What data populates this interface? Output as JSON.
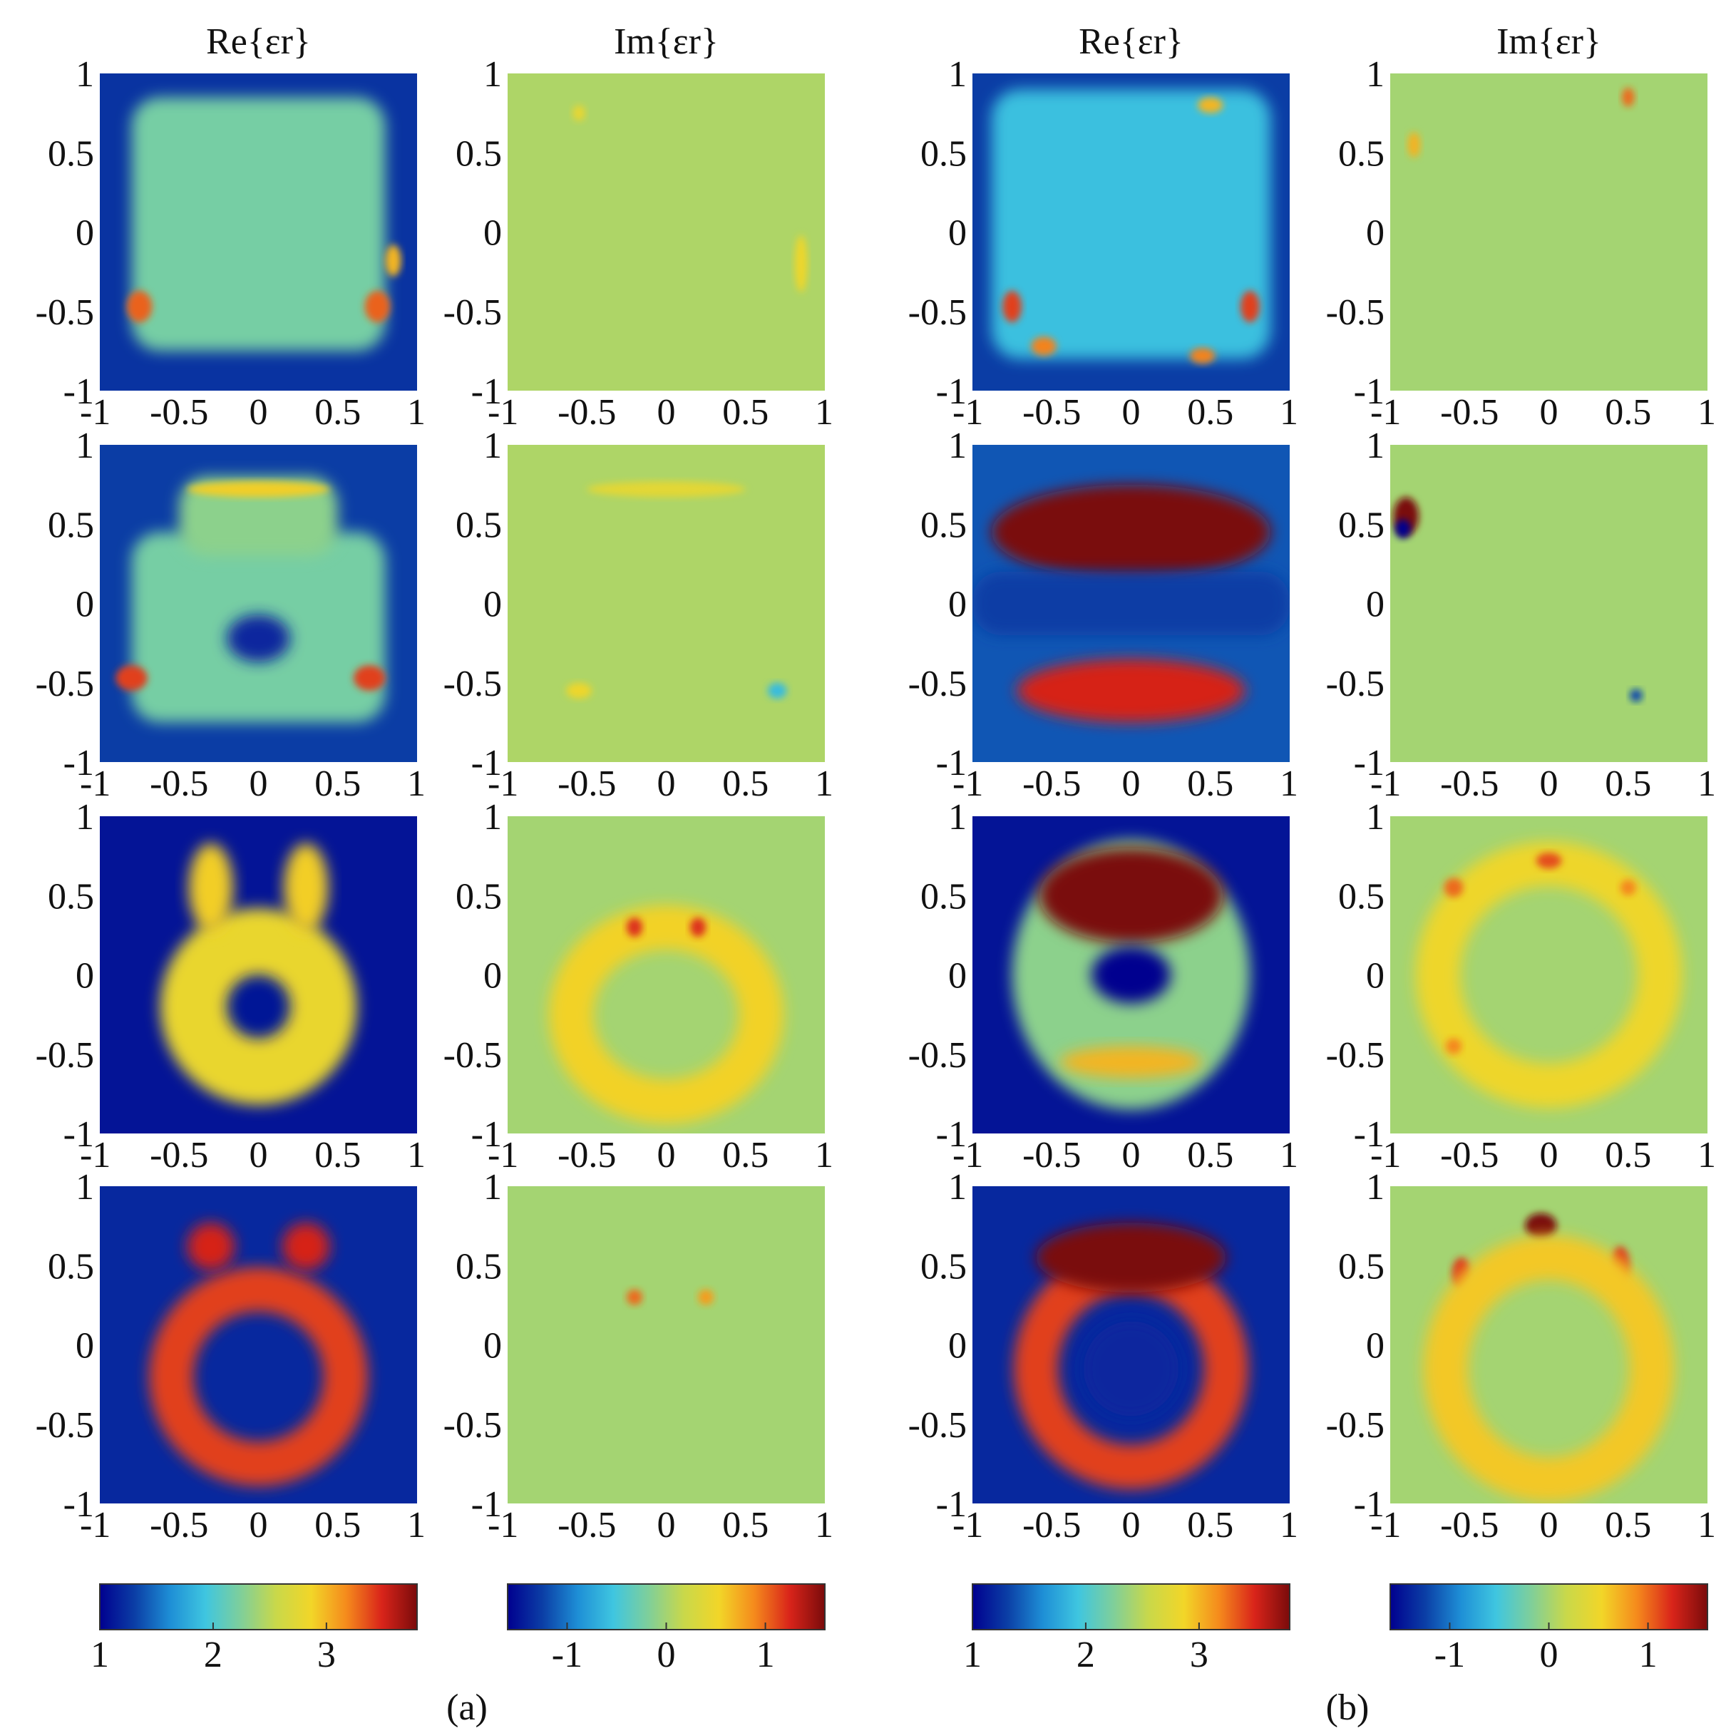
{
  "chart_data": {
    "type": "heatmap",
    "column_headers": [
      "Re{εr}",
      "Im{εr}",
      "Re{εr}",
      "Im{εr}"
    ],
    "group_labels": [
      "(a)",
      "(b)"
    ],
    "axes": {
      "xlim": [
        -1,
        1
      ],
      "ylim": [
        -1,
        1
      ],
      "x_ticks": [
        "-1",
        "-0.5",
        "0",
        "0.5",
        "1"
      ],
      "y_ticks": [
        "1",
        "0.5",
        "0",
        "-0.5",
        "-1"
      ]
    },
    "colormap": [
      "#00008f",
      "#0b3fa6",
      "#1e8fd6",
      "#3fc6e0",
      "#7fcf9a",
      "#c9d84a",
      "#f2d628",
      "#f58a1c",
      "#d9241a",
      "#7a0b0b"
    ],
    "colorbars": [
      {
        "column": 1,
        "range": [
          1,
          3.8
        ],
        "tick_values": [
          1,
          2,
          3
        ],
        "tick_labels": [
          "1",
          "2",
          "3"
        ]
      },
      {
        "column": 2,
        "range": [
          -1.6,
          1.6
        ],
        "tick_values": [
          -1,
          0,
          1
        ],
        "tick_labels": [
          "-1",
          "0",
          "1"
        ]
      },
      {
        "column": 3,
        "range": [
          1,
          3.8
        ],
        "tick_values": [
          1,
          2,
          3
        ],
        "tick_labels": [
          "1",
          "2",
          "3"
        ]
      },
      {
        "column": 4,
        "range": [
          -1.6,
          1.6
        ],
        "tick_values": [
          -1,
          0,
          1
        ],
        "tick_labels": [
          "-1",
          "0",
          "1"
        ]
      }
    ],
    "panels": [
      {
        "row": 1,
        "col": 1,
        "quantity": "Re",
        "background": 1.25,
        "features": [
          {
            "shape": "box",
            "cx": 0,
            "cy": 0.05,
            "rx": 0.8,
            "ry": 0.8,
            "value": 2.2
          },
          {
            "shape": "blob",
            "cx": -0.75,
            "cy": -0.47,
            "rx": 0.08,
            "ry": 0.1,
            "value": 3.3
          },
          {
            "shape": "blob",
            "cx": 0.75,
            "cy": -0.47,
            "rx": 0.08,
            "ry": 0.1,
            "value": 3.3
          },
          {
            "shape": "blob",
            "cx": 0.85,
            "cy": -0.18,
            "rx": 0.05,
            "ry": 0.1,
            "value": 3.0
          }
        ]
      },
      {
        "row": 1,
        "col": 2,
        "quantity": "Im",
        "background": 0.05,
        "features": [
          {
            "shape": "blob",
            "cx": 0.85,
            "cy": -0.2,
            "rx": 0.04,
            "ry": 0.18,
            "value": 0.5
          },
          {
            "shape": "blob",
            "cx": -0.55,
            "cy": 0.75,
            "rx": 0.04,
            "ry": 0.05,
            "value": 0.45
          }
        ]
      },
      {
        "row": 1,
        "col": 3,
        "quantity": "Re",
        "background": 1.3,
        "features": [
          {
            "shape": "box",
            "cx": 0,
            "cy": 0.05,
            "rx": 0.88,
            "ry": 0.85,
            "value": 1.9
          },
          {
            "shape": "blob",
            "cx": -0.75,
            "cy": -0.47,
            "rx": 0.06,
            "ry": 0.1,
            "value": 3.4
          },
          {
            "shape": "blob",
            "cx": 0.75,
            "cy": -0.47,
            "rx": 0.06,
            "ry": 0.1,
            "value": 3.4
          },
          {
            "shape": "blob",
            "cx": -0.55,
            "cy": -0.72,
            "rx": 0.08,
            "ry": 0.06,
            "value": 3.2
          },
          {
            "shape": "blob",
            "cx": 0.45,
            "cy": -0.78,
            "rx": 0.08,
            "ry": 0.05,
            "value": 3.2
          },
          {
            "shape": "blob",
            "cx": 0.5,
            "cy": 0.8,
            "rx": 0.08,
            "ry": 0.05,
            "value": 3.0
          }
        ]
      },
      {
        "row": 1,
        "col": 4,
        "quantity": "Im",
        "background": 0.0,
        "features": [
          {
            "shape": "blob",
            "cx": 0.5,
            "cy": 0.85,
            "rx": 0.04,
            "ry": 0.06,
            "value": 1.0
          },
          {
            "shape": "blob",
            "cx": -0.85,
            "cy": 0.55,
            "rx": 0.04,
            "ry": 0.08,
            "value": 0.7
          }
        ]
      },
      {
        "row": 2,
        "col": 1,
        "quantity": "Re",
        "background": 1.3,
        "features": [
          {
            "shape": "box",
            "cx": 0,
            "cy": -0.15,
            "rx": 0.8,
            "ry": 0.6,
            "value": 2.2
          },
          {
            "shape": "box",
            "cx": 0,
            "cy": 0.55,
            "rx": 0.5,
            "ry": 0.25,
            "value": 2.3
          },
          {
            "shape": "ellipse",
            "cx": 0,
            "cy": -0.22,
            "rx": 0.2,
            "ry": 0.15,
            "value": 1.2
          },
          {
            "shape": "blob",
            "cx": -0.8,
            "cy": -0.47,
            "rx": 0.1,
            "ry": 0.08,
            "value": 3.4
          },
          {
            "shape": "blob",
            "cx": 0.7,
            "cy": -0.47,
            "rx": 0.1,
            "ry": 0.08,
            "value": 3.4
          },
          {
            "shape": "blob",
            "cx": 0,
            "cy": 0.72,
            "rx": 0.45,
            "ry": 0.05,
            "value": 2.9
          }
        ]
      },
      {
        "row": 2,
        "col": 2,
        "quantity": "Im",
        "background": 0.05,
        "features": [
          {
            "shape": "blob",
            "cx": 0.7,
            "cy": -0.55,
            "rx": 0.06,
            "ry": 0.05,
            "value": -0.6
          },
          {
            "shape": "blob",
            "cx": -0.55,
            "cy": -0.55,
            "rx": 0.08,
            "ry": 0.05,
            "value": 0.5
          },
          {
            "shape": "blob",
            "cx": 0,
            "cy": 0.72,
            "rx": 0.5,
            "ry": 0.05,
            "value": 0.4
          }
        ]
      },
      {
        "row": 2,
        "col": 3,
        "quantity": "Re",
        "background": 1.4,
        "features": [
          {
            "shape": "ellipse",
            "cx": 0,
            "cy": 0.45,
            "rx": 0.88,
            "ry": 0.3,
            "value": 3.8
          },
          {
            "shape": "ellipse",
            "cx": 0,
            "cy": -0.55,
            "rx": 0.72,
            "ry": 0.2,
            "value": 3.5
          },
          {
            "shape": "box",
            "cx": 0,
            "cy": 0,
            "rx": 1.0,
            "ry": 0.2,
            "value": 1.3
          }
        ]
      },
      {
        "row": 2,
        "col": 4,
        "quantity": "Im",
        "background": 0.0,
        "features": [
          {
            "shape": "blob",
            "cx": -0.9,
            "cy": 0.55,
            "rx": 0.08,
            "ry": 0.12,
            "value": 1.6
          },
          {
            "shape": "blob",
            "cx": -0.92,
            "cy": 0.47,
            "rx": 0.05,
            "ry": 0.06,
            "value": -1.6
          },
          {
            "shape": "blob",
            "cx": 0.55,
            "cy": -0.58,
            "rx": 0.04,
            "ry": 0.04,
            "value": -1.2
          }
        ]
      },
      {
        "row": 3,
        "col": 1,
        "quantity": "Re",
        "background": 1.1,
        "features": [
          {
            "shape": "ellipse",
            "cx": 0,
            "cy": -0.2,
            "rx": 0.62,
            "ry": 0.62,
            "value": 2.8
          },
          {
            "shape": "ellipse",
            "cx": 0,
            "cy": -0.2,
            "rx": 0.2,
            "ry": 0.2,
            "value": 1.1
          },
          {
            "shape": "ellipse",
            "cx": -0.3,
            "cy": 0.55,
            "rx": 0.14,
            "ry": 0.28,
            "value": 2.9
          },
          {
            "shape": "ellipse",
            "cx": 0.3,
            "cy": 0.55,
            "rx": 0.14,
            "ry": 0.28,
            "value": 2.9
          }
        ]
      },
      {
        "row": 3,
        "col": 2,
        "quantity": "Im",
        "background": 0.0,
        "features": [
          {
            "shape": "ring",
            "cx": 0,
            "cy": -0.25,
            "rx": 0.6,
            "ry": 0.55,
            "value": 0.55
          },
          {
            "shape": "blob",
            "cx": -0.2,
            "cy": 0.3,
            "rx": 0.05,
            "ry": 0.06,
            "value": 1.2
          },
          {
            "shape": "blob",
            "cx": 0.2,
            "cy": 0.3,
            "rx": 0.05,
            "ry": 0.06,
            "value": 1.2
          }
        ]
      },
      {
        "row": 3,
        "col": 3,
        "quantity": "Re",
        "background": 1.1,
        "features": [
          {
            "shape": "ellipse",
            "cx": 0,
            "cy": 0,
            "rx": 0.75,
            "ry": 0.85,
            "value": 2.3
          },
          {
            "shape": "ellipse",
            "cx": 0,
            "cy": 0.5,
            "rx": 0.58,
            "ry": 0.3,
            "value": 3.8
          },
          {
            "shape": "ellipse",
            "cx": 0,
            "cy": 0,
            "rx": 0.25,
            "ry": 0.18,
            "value": 1.0
          },
          {
            "shape": "ellipse",
            "cx": 0,
            "cy": -0.55,
            "rx": 0.45,
            "ry": 0.1,
            "value": 3.0
          }
        ]
      },
      {
        "row": 3,
        "col": 4,
        "quantity": "Im",
        "background": 0.0,
        "features": [
          {
            "shape": "ring",
            "cx": 0,
            "cy": 0,
            "rx": 0.7,
            "ry": 0.7,
            "value": 0.5
          },
          {
            "shape": "blob",
            "cx": -0.6,
            "cy": 0.55,
            "rx": 0.06,
            "ry": 0.06,
            "value": 1.0
          },
          {
            "shape": "blob",
            "cx": 0,
            "cy": 0.72,
            "rx": 0.08,
            "ry": 0.05,
            "value": 1.1
          },
          {
            "shape": "blob",
            "cx": 0.5,
            "cy": 0.55,
            "rx": 0.05,
            "ry": 0.05,
            "value": 0.9
          },
          {
            "shape": "blob",
            "cx": -0.6,
            "cy": -0.45,
            "rx": 0.05,
            "ry": 0.05,
            "value": 0.9
          }
        ]
      },
      {
        "row": 4,
        "col": 1,
        "quantity": "Re",
        "background": 1.2,
        "features": [
          {
            "shape": "ring",
            "cx": 0,
            "cy": -0.2,
            "rx": 0.55,
            "ry": 0.55,
            "value": 3.4
          },
          {
            "shape": "ellipse",
            "cx": -0.3,
            "cy": 0.62,
            "rx": 0.15,
            "ry": 0.15,
            "value": 3.5
          },
          {
            "shape": "ellipse",
            "cx": 0.3,
            "cy": 0.62,
            "rx": 0.15,
            "ry": 0.15,
            "value": 3.5
          }
        ]
      },
      {
        "row": 4,
        "col": 2,
        "quantity": "Im",
        "background": 0.0,
        "features": [
          {
            "shape": "blob",
            "cx": -0.2,
            "cy": 0.3,
            "rx": 0.05,
            "ry": 0.05,
            "value": 1.0
          },
          {
            "shape": "blob",
            "cx": 0.25,
            "cy": 0.3,
            "rx": 0.05,
            "ry": 0.05,
            "value": 0.8
          }
        ]
      },
      {
        "row": 4,
        "col": 3,
        "quantity": "Re",
        "background": 1.2,
        "features": [
          {
            "shape": "ring",
            "cx": 0,
            "cy": -0.15,
            "rx": 0.6,
            "ry": 0.62,
            "value": 3.4
          },
          {
            "shape": "ellipse",
            "cx": 0,
            "cy": 0.55,
            "rx": 0.6,
            "ry": 0.22,
            "value": 3.8
          },
          {
            "shape": "ellipse",
            "cx": 0,
            "cy": -0.15,
            "rx": 0.3,
            "ry": 0.3,
            "value": 1.2
          }
        ]
      },
      {
        "row": 4,
        "col": 4,
        "quantity": "Im",
        "background": 0.0,
        "features": [
          {
            "shape": "blob",
            "cx": -0.05,
            "cy": 0.75,
            "rx": 0.1,
            "ry": 0.08,
            "value": 1.6
          },
          {
            "shape": "blob",
            "cx": -0.55,
            "cy": 0.45,
            "rx": 0.06,
            "ry": 0.1,
            "value": 1.2
          },
          {
            "shape": "blob",
            "cx": 0.45,
            "cy": 0.5,
            "rx": 0.06,
            "ry": 0.12,
            "value": 1.2
          },
          {
            "shape": "ring",
            "cx": 0,
            "cy": -0.15,
            "rx": 0.65,
            "ry": 0.7,
            "value": 0.6
          }
        ]
      }
    ]
  }
}
